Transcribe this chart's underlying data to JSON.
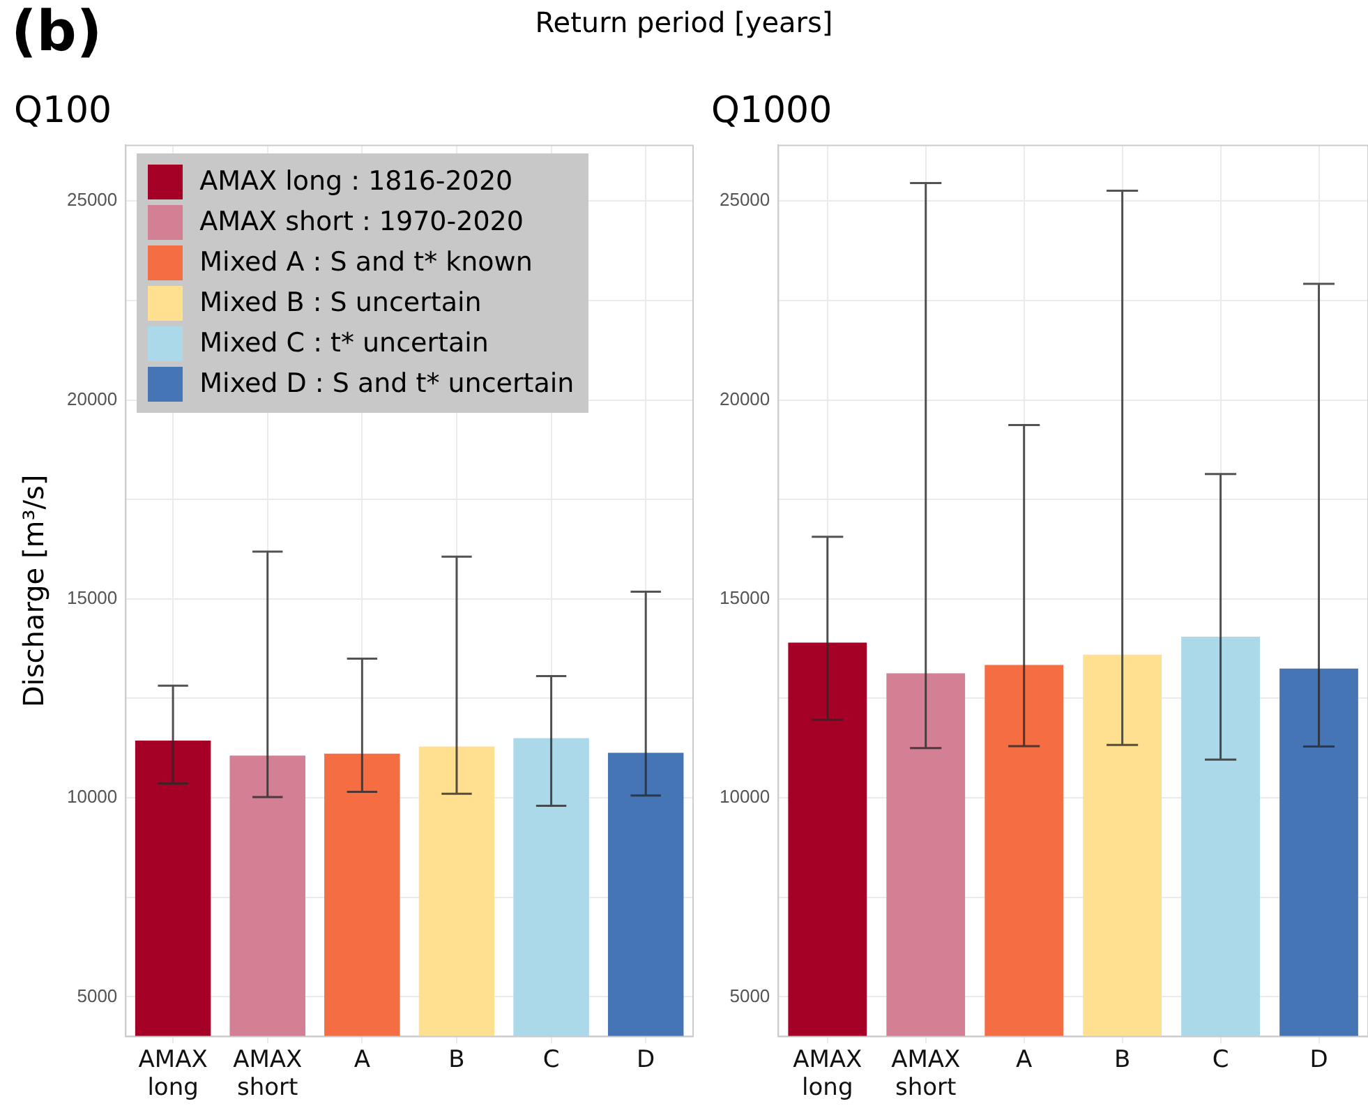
{
  "chart_data": [
    {
      "type": "bar",
      "title": "Q100",
      "ylabel": "Discharge [m³/s]",
      "annotations": [
        "(b)",
        "Return period [years]"
      ],
      "categories": [
        "AMAX long",
        "AMAX short",
        "A",
        "B",
        "C",
        "D"
      ],
      "series": [
        {
          "name": "AMAX long : 1816-2020",
          "color": "#a50026",
          "values": [
            11440,
            null,
            null,
            null,
            null,
            null
          ],
          "errors": [
            [
              10360,
              12820
            ],
            null,
            null,
            null,
            null,
            null
          ]
        },
        {
          "name": "AMAX short : 1970-2020",
          "color": "#d37f94",
          "values": [
            null,
            11060,
            null,
            null,
            null,
            null
          ],
          "errors": [
            null,
            [
              10020,
              16190
            ],
            null,
            null,
            null,
            null
          ]
        },
        {
          "name": "Mixed A : S and t* known",
          "color": "#f46d43",
          "values": [
            null,
            null,
            11110,
            null,
            null,
            null
          ],
          "errors": [
            null,
            null,
            [
              10150,
              13500
            ],
            null,
            null,
            null
          ]
        },
        {
          "name": "Mixed B : S uncertain",
          "color": "#fee090",
          "values": [
            null,
            null,
            null,
            11290,
            null,
            null
          ],
          "errors": [
            null,
            null,
            null,
            [
              10100,
              16060
            ],
            null,
            null
          ]
        },
        {
          "name": "Mixed C : t* uncertain",
          "color": "#abd9e9",
          "values": [
            null,
            null,
            null,
            null,
            11500,
            null
          ],
          "errors": [
            null,
            null,
            null,
            null,
            [
              9800,
              13060
            ],
            null
          ]
        },
        {
          "name": "Mixed D : S and t* uncertain",
          "color": "#4575b4",
          "values": [
            null,
            null,
            null,
            null,
            null,
            11130
          ],
          "errors": [
            null,
            null,
            null,
            null,
            null,
            [
              10060,
              15180
            ]
          ]
        }
      ],
      "ylim": [
        4000,
        26400
      ],
      "yticks": [
        5000,
        {
          "value": 7500,
          "label": null
        },
        10000,
        {
          "value": 12500,
          "label": null
        },
        15000,
        {
          "value": 17500,
          "label": null
        },
        20000,
        {
          "value": 22500,
          "label": null
        },
        25000
      ],
      "grid": true,
      "legend": "top left"
    },
    {
      "type": "bar",
      "title": "Q1000",
      "categories": [
        "AMAX long",
        "AMAX short",
        "A",
        "B",
        "C",
        "D"
      ],
      "series": [
        {
          "color": "#a50026",
          "values": [
            13900,
            null,
            null,
            null,
            null,
            null
          ],
          "errors": [
            [
              11960,
              16560
            ],
            null,
            null,
            null,
            null,
            null
          ]
        },
        {
          "color": "#d37f94",
          "values": [
            null,
            13130,
            null,
            null,
            null,
            null
          ],
          "errors": [
            null,
            [
              11250,
              25450
            ],
            null,
            null,
            null,
            null
          ]
        },
        {
          "color": "#f46d43",
          "values": [
            null,
            null,
            13340,
            null,
            null,
            null
          ],
          "errors": [
            null,
            null,
            [
              11300,
              19370
            ],
            null,
            null,
            null
          ]
        },
        {
          "color": "#fee090",
          "values": [
            null,
            null,
            null,
            13600,
            null,
            null
          ],
          "errors": [
            null,
            null,
            null,
            [
              11330,
              25260
            ],
            null,
            null
          ]
        },
        {
          "color": "#abd9e9",
          "values": [
            null,
            null,
            null,
            null,
            14050,
            null
          ],
          "errors": [
            null,
            null,
            null,
            null,
            [
              10960,
              18140
            ],
            null
          ]
        },
        {
          "color": "#4575b4",
          "values": [
            null,
            null,
            null,
            null,
            null,
            13250
          ],
          "errors": [
            null,
            null,
            null,
            null,
            null,
            [
              11290,
              22920
            ]
          ]
        }
      ],
      "ylim": [
        4000,
        26400
      ],
      "yticks": [
        5000,
        {
          "value": 7500,
          "label": null
        },
        10000,
        {
          "value": 12500,
          "label": null
        },
        15000,
        {
          "value": 17500,
          "label": null
        },
        20000,
        {
          "value": 22500,
          "label": null
        },
        25000
      ],
      "grid": true
    }
  ]
}
